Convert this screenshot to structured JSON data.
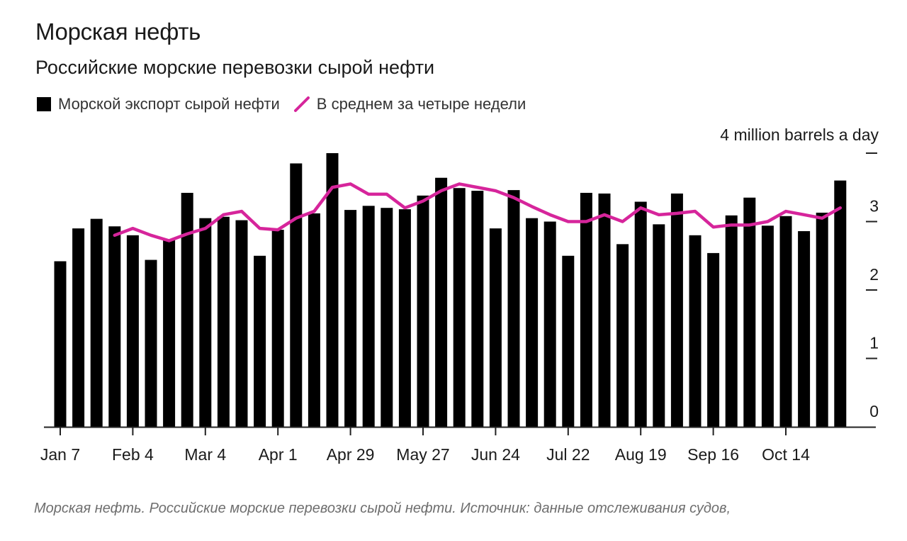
{
  "title": "Морская нефть",
  "subtitle": "Российские морские перевозки сырой нефти",
  "legend": {
    "bar_label": "Морской экспорт сырой нефти",
    "line_label": "В среднем за четыре недели"
  },
  "caption": "Морская нефть. Российские морские перевозки сырой нефти. Источник: данные отслеживания судов,",
  "colors": {
    "bar": "#000000",
    "line": "#d6259b",
    "axis": "#222222"
  },
  "chart_data": {
    "type": "bar",
    "title": "Морская нефть",
    "subtitle": "Российские морские перевозки сырой нефти",
    "ylabel": "4 million barrels a day",
    "ylim": [
      0,
      4
    ],
    "y_ticks": [
      {
        "value": 0,
        "label": "0"
      },
      {
        "value": 1,
        "label": "1"
      },
      {
        "value": 2,
        "label": "2"
      },
      {
        "value": 3,
        "label": "3"
      },
      {
        "value": 4,
        "label": ""
      }
    ],
    "x_tick_labels": [
      {
        "index": 0,
        "label": "Jan 7"
      },
      {
        "index": 4,
        "label": "Feb 4"
      },
      {
        "index": 8,
        "label": "Mar 4"
      },
      {
        "index": 12,
        "label": "Apr 1"
      },
      {
        "index": 16,
        "label": "Apr 29"
      },
      {
        "index": 20,
        "label": "May 27"
      },
      {
        "index": 24,
        "label": "Jun 24"
      },
      {
        "index": 28,
        "label": "Jul 22"
      },
      {
        "index": 32,
        "label": "Aug 19"
      },
      {
        "index": 36,
        "label": "Sep 16"
      },
      {
        "index": 40,
        "label": "Oct 14"
      }
    ],
    "legend_position": "top-left",
    "grid": false,
    "series": [
      {
        "name": "Морской экспорт сырой нефти",
        "type": "bar",
        "values": [
          2.42,
          2.9,
          3.04,
          2.93,
          2.8,
          2.44,
          2.73,
          3.42,
          3.05,
          3.07,
          3.02,
          2.5,
          2.88,
          3.85,
          3.12,
          4.0,
          3.17,
          3.23,
          3.2,
          3.18,
          3.38,
          3.64,
          3.49,
          3.45,
          2.9,
          3.46,
          3.05,
          3.0,
          2.5,
          3.42,
          3.41,
          2.67,
          3.29,
          2.96,
          3.41,
          2.8,
          2.54,
          3.09,
          3.35,
          2.94,
          3.08,
          2.86,
          3.13,
          3.6
        ]
      },
      {
        "name": "В среднем за четыре недели",
        "type": "line",
        "start_index": 3,
        "values": [
          2.8,
          2.9,
          2.8,
          2.72,
          2.82,
          2.9,
          3.1,
          3.15,
          2.9,
          2.88,
          3.05,
          3.15,
          3.5,
          3.55,
          3.4,
          3.4,
          3.2,
          3.3,
          3.45,
          3.55,
          3.5,
          3.45,
          3.35,
          3.22,
          3.1,
          3.0,
          3.0,
          3.1,
          3.0,
          3.2,
          3.1,
          3.12,
          3.15,
          2.92,
          2.95,
          2.95,
          3.0,
          3.15,
          3.1,
          3.05,
          3.2
        ]
      }
    ]
  }
}
